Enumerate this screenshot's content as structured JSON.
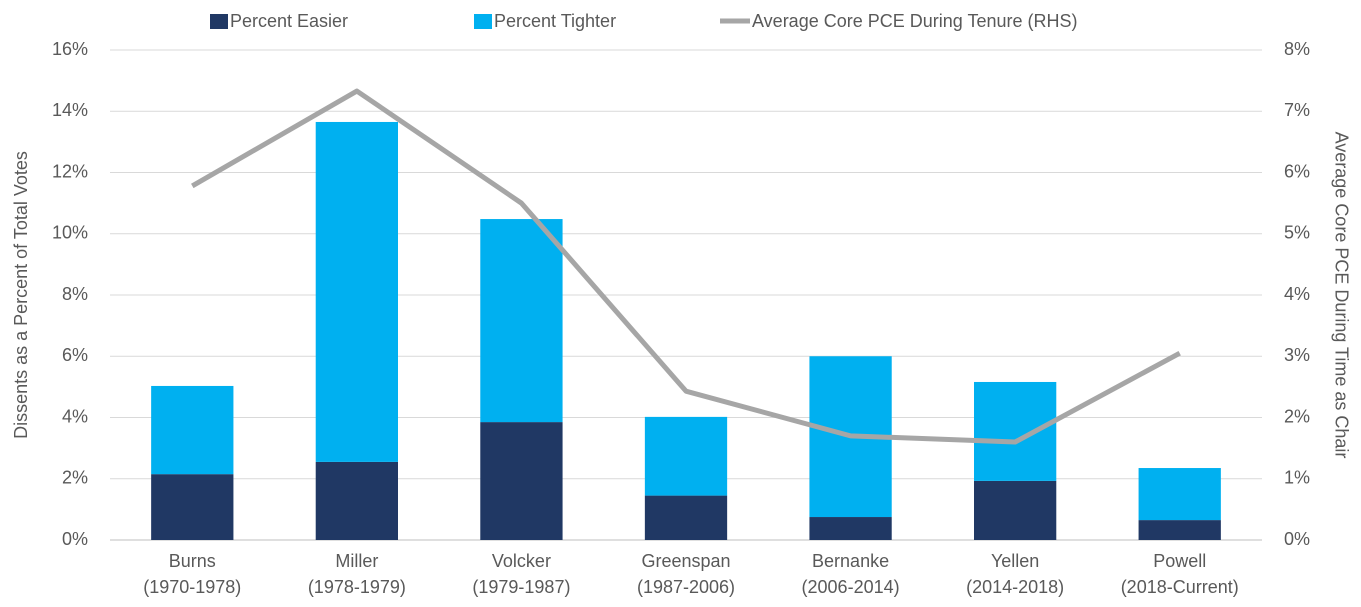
{
  "chart_data": {
    "type": "stacked-bar-line",
    "categories": [
      "Burns\n(1970-1978)",
      "Miller\n(1978-1979)",
      "Volcker\n(1979-1987)",
      "Greenspan\n(1987-2006)",
      "Bernanke\n(2006-2014)",
      "Yellen\n(2014-2018)",
      "Powell\n(2018-Current)"
    ],
    "series": [
      {
        "name": "Percent Easier",
        "color": "#203864",
        "kind": "bar",
        "values": [
          2.15,
          2.55,
          3.85,
          1.45,
          0.75,
          1.93,
          0.65
        ]
      },
      {
        "name": "Percent Tighter",
        "color": "#00b0f0",
        "kind": "bar",
        "values": [
          2.88,
          11.1,
          6.63,
          2.57,
          5.25,
          3.23,
          1.7
        ]
      },
      {
        "name": "Average Core PCE During Tenure (RHS)",
        "color": "#a6a6a6",
        "kind": "line",
        "axis": "y2",
        "values": [
          5.78,
          7.33,
          5.5,
          2.43,
          1.7,
          1.6,
          3.05
        ]
      }
    ],
    "ylabel": "Dissents as a Percent of Total Votes",
    "y2label": "Average Core PCE During Time as Chair",
    "ylim": [
      0,
      16
    ],
    "yticks": [
      {
        "value": 0,
        "label": "0%"
      },
      {
        "value": 2,
        "label": "2%"
      },
      {
        "value": 4,
        "label": "4%"
      },
      {
        "value": 6,
        "label": "6%"
      },
      {
        "value": 8,
        "label": "8%"
      },
      {
        "value": 10,
        "label": "10%"
      },
      {
        "value": 12,
        "label": "12%"
      },
      {
        "value": 14,
        "label": "14%"
      },
      {
        "value": 16,
        "label": "16%"
      }
    ],
    "y2lim": [
      0,
      8
    ],
    "y2ticks": [
      {
        "value": 0,
        "label": "0%"
      },
      {
        "value": 1,
        "label": "1%"
      },
      {
        "value": 2,
        "label": "2%"
      },
      {
        "value": 3,
        "label": "3%"
      },
      {
        "value": 4,
        "label": "4%"
      },
      {
        "value": 5,
        "label": "5%"
      },
      {
        "value": 6,
        "label": "6%"
      },
      {
        "value": 7,
        "label": "7%"
      },
      {
        "value": 8,
        "label": "8%"
      }
    ],
    "grid": true,
    "legend": "top"
  }
}
